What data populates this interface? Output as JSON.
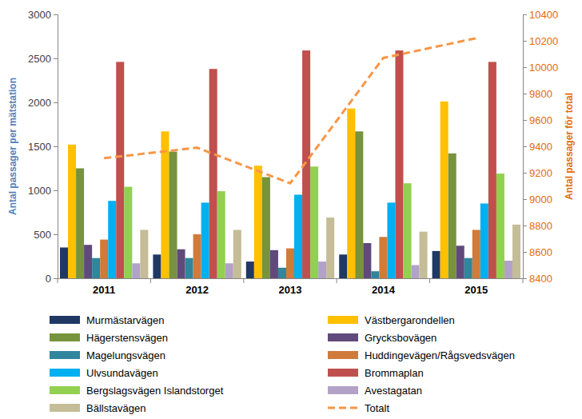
{
  "chart_data": {
    "type": "bar",
    "categories": [
      "2011",
      "2012",
      "2013",
      "2014",
      "2015"
    ],
    "y_label": "Antal passager per mätstation",
    "y2_label": "Antal passager för total",
    "ylim": [
      0,
      3000
    ],
    "yticks": [
      0,
      500,
      1000,
      1500,
      2000,
      2500,
      3000
    ],
    "y2lim": [
      8400,
      10400
    ],
    "y2ticks": [
      8400,
      8600,
      8800,
      9000,
      9200,
      9400,
      9600,
      9800,
      10000,
      10200,
      10400
    ],
    "grid": false,
    "legend": "bottom",
    "series": [
      {
        "name": "Murmästarvägen",
        "type": "bar",
        "color": "#1f3864",
        "values": [
          350,
          270,
          190,
          270,
          310
        ]
      },
      {
        "name": "Västbergarondellen",
        "type": "bar",
        "color": "#ffc000",
        "values": [
          1520,
          1670,
          1280,
          1930,
          2010
        ]
      },
      {
        "name": "Hägerstensvägen",
        "type": "bar",
        "color": "#77933c",
        "values": [
          1250,
          1440,
          1150,
          1670,
          1420
        ]
      },
      {
        "name": "Grycksbovägen",
        "type": "bar",
        "color": "#604a7b",
        "values": [
          380,
          330,
          320,
          400,
          370
        ]
      },
      {
        "name": "Magelungsvägen",
        "type": "bar",
        "color": "#31859c",
        "values": [
          230,
          230,
          120,
          80,
          230
        ]
      },
      {
        "name": "Huddingevägen/Rågsvedsvägen",
        "type": "bar",
        "color": "#d07b3a",
        "values": [
          440,
          500,
          340,
          470,
          550
        ]
      },
      {
        "name": "Ulvsundavägen",
        "type": "bar",
        "color": "#00b0f0",
        "values": [
          880,
          860,
          950,
          860,
          850
        ]
      },
      {
        "name": "Brommaplan",
        "type": "bar",
        "color": "#c0504d",
        "values": [
          2460,
          2380,
          2590,
          2590,
          2460
        ]
      },
      {
        "name": "Bergslagsvägen Islandstorget",
        "type": "bar",
        "color": "#92d050",
        "values": [
          1040,
          990,
          1270,
          1080,
          1190
        ]
      },
      {
        "name": "Avestagatan",
        "type": "bar",
        "color": "#b3a2c7",
        "values": [
          170,
          170,
          190,
          150,
          200
        ]
      },
      {
        "name": "Bällstavägen",
        "type": "bar",
        "color": "#c4bd97",
        "values": [
          550,
          550,
          690,
          530,
          610
        ]
      },
      {
        "name": "Totalt",
        "type": "line",
        "axis": "y2",
        "color": "#f79646",
        "line_style": "dashed",
        "values": [
          9310,
          9390,
          9120,
          10070,
          10220
        ]
      }
    ]
  }
}
